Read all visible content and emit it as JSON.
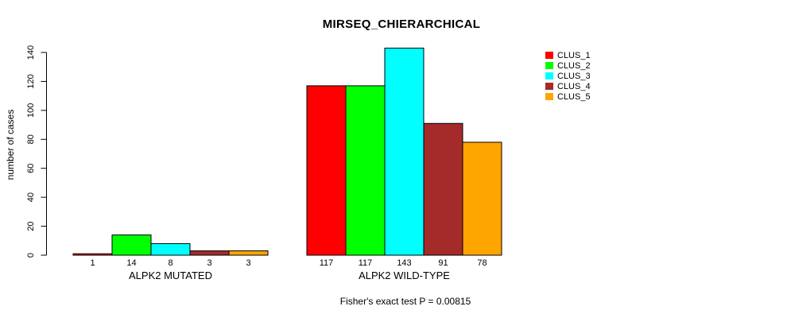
{
  "chart_data": {
    "type": "bar",
    "title": "MIRSEQ_CHIERARCHICAL",
    "ylabel": "number of cases",
    "note": "Fisher's exact test P = 0.00815",
    "ylim": [
      0,
      140
    ],
    "yticks": [
      0,
      20,
      40,
      60,
      80,
      100,
      120,
      140
    ],
    "grid": "off",
    "legend_position": "right",
    "series": [
      {
        "name": "CLUS_1",
        "color": "#FF0000"
      },
      {
        "name": "CLUS_2",
        "color": "#00FF00"
      },
      {
        "name": "CLUS_3",
        "color": "#00FFFF"
      },
      {
        "name": "CLUS_4",
        "color": "#A52A2A"
      },
      {
        "name": "CLUS_5",
        "color": "#FFA500"
      }
    ],
    "groups": [
      {
        "label": "ALPK2 MUTATED",
        "values": [
          1,
          14,
          8,
          3,
          3
        ]
      },
      {
        "label": "ALPK2 WILD-TYPE",
        "values": [
          117,
          117,
          143,
          91,
          78
        ]
      }
    ]
  }
}
